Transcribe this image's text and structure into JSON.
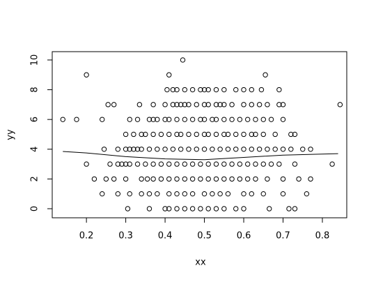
{
  "chart_data": {
    "type": "scatter",
    "x_label": "xx",
    "y_label": "yy",
    "xlim": [
      0.113,
      0.862
    ],
    "ylim": [
      -0.61,
      10.56
    ],
    "xticks": [
      0.2,
      0.3,
      0.4,
      0.5,
      0.6,
      0.7,
      0.8
    ],
    "yticks": [
      0,
      2,
      4,
      6,
      8,
      10
    ],
    "color": "#000000",
    "x": [
      0.445,
      0.2,
      0.41,
      0.655,
      0.405,
      0.42,
      0.43,
      0.45,
      0.47,
      0.49,
      0.5,
      0.51,
      0.53,
      0.55,
      0.58,
      0.6,
      0.62,
      0.645,
      0.69,
      0.255,
      0.27,
      0.335,
      0.37,
      0.4,
      0.42,
      0.43,
      0.44,
      0.45,
      0.46,
      0.48,
      0.5,
      0.51,
      0.53,
      0.54,
      0.55,
      0.57,
      0.6,
      0.62,
      0.64,
      0.66,
      0.69,
      0.7,
      0.845,
      0.14,
      0.175,
      0.24,
      0.31,
      0.33,
      0.36,
      0.37,
      0.38,
      0.4,
      0.41,
      0.43,
      0.45,
      0.47,
      0.49,
      0.5,
      0.52,
      0.53,
      0.55,
      0.57,
      0.59,
      0.61,
      0.63,
      0.65,
      0.67,
      0.7,
      0.3,
      0.32,
      0.34,
      0.35,
      0.37,
      0.39,
      0.41,
      0.43,
      0.44,
      0.46,
      0.48,
      0.5,
      0.51,
      0.53,
      0.55,
      0.56,
      0.58,
      0.6,
      0.62,
      0.63,
      0.65,
      0.68,
      0.72,
      0.73,
      0.245,
      0.28,
      0.3,
      0.31,
      0.32,
      0.33,
      0.34,
      0.36,
      0.38,
      0.4,
      0.42,
      0.44,
      0.46,
      0.48,
      0.5,
      0.52,
      0.54,
      0.56,
      0.58,
      0.6,
      0.62,
      0.64,
      0.66,
      0.68,
      0.7,
      0.72,
      0.75,
      0.77,
      0.2,
      0.26,
      0.28,
      0.29,
      0.3,
      0.31,
      0.33,
      0.35,
      0.37,
      0.39,
      0.41,
      0.43,
      0.45,
      0.47,
      0.49,
      0.51,
      0.53,
      0.55,
      0.57,
      0.59,
      0.61,
      0.63,
      0.65,
      0.67,
      0.69,
      0.73,
      0.825,
      0.22,
      0.25,
      0.27,
      0.3,
      0.34,
      0.355,
      0.37,
      0.39,
      0.41,
      0.43,
      0.45,
      0.47,
      0.49,
      0.51,
      0.53,
      0.55,
      0.57,
      0.59,
      0.61,
      0.63,
      0.66,
      0.7,
      0.74,
      0.77,
      0.24,
      0.28,
      0.31,
      0.34,
      0.36,
      0.38,
      0.41,
      0.43,
      0.45,
      0.47,
      0.5,
      0.52,
      0.54,
      0.56,
      0.6,
      0.62,
      0.65,
      0.7,
      0.76,
      0.305,
      0.36,
      0.4,
      0.41,
      0.43,
      0.45,
      0.47,
      0.49,
      0.51,
      0.53,
      0.55,
      0.58,
      0.6,
      0.665,
      0.715,
      0.73
    ],
    "y": [
      10,
      9,
      9,
      9,
      8,
      8,
      8,
      8,
      8,
      8,
      8,
      8,
      8,
      8,
      8,
      8,
      8,
      8,
      8,
      7,
      7,
      7,
      7,
      7,
      7,
      7,
      7,
      7,
      7,
      7,
      7,
      7,
      7,
      7,
      7,
      7,
      7,
      7,
      7,
      7,
      7,
      7,
      7,
      6,
      6,
      6,
      6,
      6,
      6,
      6,
      6,
      6,
      6,
      6,
      6,
      6,
      6,
      6,
      6,
      6,
      6,
      6,
      6,
      6,
      6,
      6,
      6,
      6,
      5,
      5,
      5,
      5,
      5,
      5,
      5,
      5,
      5,
      5,
      5,
      5,
      5,
      5,
      5,
      5,
      5,
      5,
      5,
      5,
      5,
      5,
      5,
      5,
      4,
      4,
      4,
      4,
      4,
      4,
      4,
      4,
      4,
      4,
      4,
      4,
      4,
      4,
      4,
      4,
      4,
      4,
      4,
      4,
      4,
      4,
      4,
      4,
      4,
      4,
      4,
      4,
      3,
      3,
      3,
      3,
      3,
      3,
      3,
      3,
      3,
      3,
      3,
      3,
      3,
      3,
      3,
      3,
      3,
      3,
      3,
      3,
      3,
      3,
      3,
      3,
      3,
      3,
      3,
      2,
      2,
      2,
      2,
      2,
      2,
      2,
      2,
      2,
      2,
      2,
      2,
      2,
      2,
      2,
      2,
      2,
      2,
      2,
      2,
      2,
      2,
      2,
      2,
      1,
      1,
      1,
      1,
      1,
      1,
      1,
      1,
      1,
      1,
      1,
      1,
      1,
      1,
      1,
      1,
      1,
      1,
      1,
      0,
      0,
      0,
      0,
      0,
      0,
      0,
      0,
      0,
      0,
      0,
      0,
      0,
      0,
      0,
      0
    ],
    "smooth": {
      "x": [
        0.14,
        0.2,
        0.3,
        0.4,
        0.5,
        0.6,
        0.7,
        0.84
      ],
      "y": [
        3.85,
        3.75,
        3.5,
        3.35,
        3.3,
        3.45,
        3.6,
        3.7
      ]
    }
  }
}
